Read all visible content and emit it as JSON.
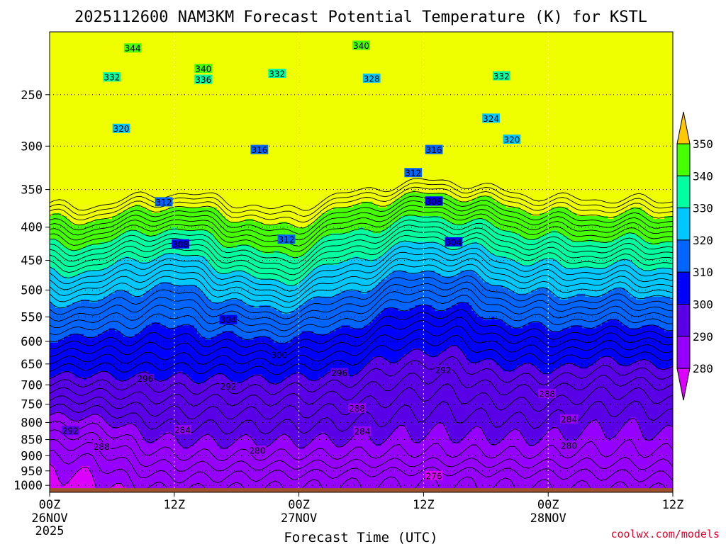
{
  "chart_data": {
    "type": "heatmap",
    "title": "2025112600 NAM3KM Forecast Potential Temperature (K) for KSTL",
    "xlabel": "Forecast Time (UTC)",
    "credit": "coolwx.com/models",
    "x_ticks": [
      {
        "hour": 0,
        "label": "00Z",
        "sub1": "26NOV",
        "sub2": "2025"
      },
      {
        "hour": 12,
        "label": "12Z",
        "sub1": "",
        "sub2": ""
      },
      {
        "hour": 24,
        "label": "00Z",
        "sub1": "27NOV",
        "sub2": ""
      },
      {
        "hour": 36,
        "label": "12Z",
        "sub1": "",
        "sub2": ""
      },
      {
        "hour": 48,
        "label": "00Z",
        "sub1": "28NOV",
        "sub2": ""
      },
      {
        "hour": 60,
        "label": "12Z",
        "sub1": "",
        "sub2": ""
      }
    ],
    "xlim": [
      0,
      60
    ],
    "y_ticks": [
      250,
      300,
      350,
      400,
      450,
      500,
      550,
      600,
      650,
      700,
      750,
      800,
      850,
      900,
      950,
      1000
    ],
    "y_axis": "pressure (hPa), log scale, inverted",
    "ylim": [
      200,
      1025
    ],
    "surface_pressure": 1010,
    "colorbar": {
      "levels": [
        280,
        290,
        300,
        310,
        320,
        330,
        340,
        350
      ],
      "colors": [
        "#dc00ff",
        "#9600ff",
        "#5a00e6",
        "#0000ff",
        "#0064ff",
        "#00c8ff",
        "#00ffa0",
        "#46ff00",
        "#f0ff00",
        "#ffc800"
      ],
      "extend": "both"
    },
    "surface_color": "#a0522d",
    "contour_interval": 2,
    "contour_labels": [
      {
        "text": "344",
        "hour": 8.0,
        "p": 212
      },
      {
        "text": "340",
        "hour": 30.0,
        "p": 210
      },
      {
        "text": "340",
        "hour": 14.8,
        "p": 228
      },
      {
        "text": "336",
        "hour": 14.8,
        "p": 237
      },
      {
        "text": "332",
        "hour": 6.0,
        "p": 235
      },
      {
        "text": "332",
        "hour": 21.9,
        "p": 232
      },
      {
        "text": "328",
        "hour": 31.0,
        "p": 236
      },
      {
        "text": "332",
        "hour": 43.5,
        "p": 234
      },
      {
        "text": "324",
        "hour": 42.5,
        "p": 272
      },
      {
        "text": "320",
        "hour": 6.9,
        "p": 282
      },
      {
        "text": "320",
        "hour": 44.5,
        "p": 293
      },
      {
        "text": "316",
        "hour": 20.2,
        "p": 304
      },
      {
        "text": "316",
        "hour": 37.0,
        "p": 304
      },
      {
        "text": "312",
        "hour": 35.0,
        "p": 330
      },
      {
        "text": "312",
        "hour": 11.0,
        "p": 366
      },
      {
        "text": "308",
        "hour": 37.0,
        "p": 365
      },
      {
        "text": "312",
        "hour": 22.8,
        "p": 418
      },
      {
        "text": "308",
        "hour": 12.6,
        "p": 425
      },
      {
        "text": "304",
        "hour": 38.9,
        "p": 422
      },
      {
        "text": "304",
        "hour": 17.2,
        "p": 556
      },
      {
        "text": "300",
        "hour": 22.1,
        "p": 629
      },
      {
        "text": "296",
        "hour": 27.9,
        "p": 671
      },
      {
        "text": "296",
        "hour": 9.2,
        "p": 685
      },
      {
        "text": "292",
        "hour": 37.9,
        "p": 664
      },
      {
        "text": "292",
        "hour": 17.2,
        "p": 704
      },
      {
        "text": "288",
        "hour": 29.6,
        "p": 761
      },
      {
        "text": "288",
        "hour": 47.9,
        "p": 723
      },
      {
        "text": "292",
        "hour": 2.0,
        "p": 824
      },
      {
        "text": "284",
        "hour": 12.8,
        "p": 822
      },
      {
        "text": "284",
        "hour": 30.1,
        "p": 826
      },
      {
        "text": "284",
        "hour": 50.0,
        "p": 791
      },
      {
        "text": "288",
        "hour": 5.0,
        "p": 872
      },
      {
        "text": "280",
        "hour": 20.0,
        "p": 884
      },
      {
        "text": "280",
        "hour": 50.0,
        "p": 868
      },
      {
        "text": "276",
        "hour": 37.0,
        "p": 967
      }
    ]
  }
}
